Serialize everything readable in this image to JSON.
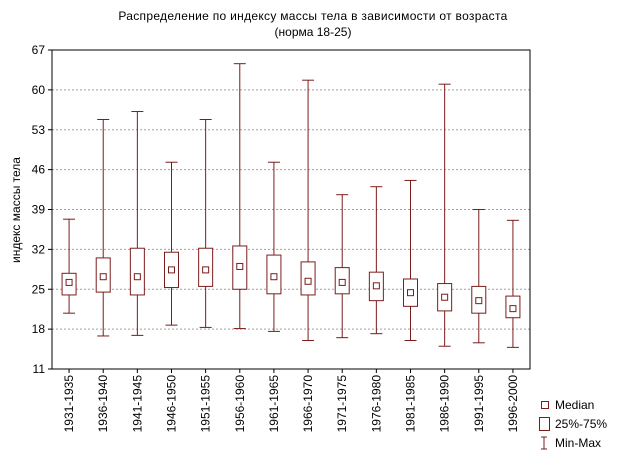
{
  "chart_data": {
    "type": "boxplot",
    "title": "Распределение по индексу массы тела в зависимости от возраста",
    "subtitle": "(норма 18-25)",
    "xlabel": "",
    "ylabel": "индекс массы тела",
    "ylim": [
      11,
      67
    ],
    "yticks": [
      "11",
      "18",
      "25",
      "32",
      "39",
      "46",
      "53",
      "60",
      "67"
    ],
    "grid": true,
    "legend_position": "bottom-right",
    "categories": [
      "1931-1935",
      "1936-1940",
      "1941-1945",
      "1946-1950",
      "1951-1955",
      "1956-1960",
      "1961-1965",
      "1966-1970",
      "1971-1975",
      "1976-1980",
      "1981-1985",
      "1986-1990",
      "1991-1995",
      "1996-2000"
    ],
    "median": [
      26.2,
      27.2,
      27.2,
      28.4,
      28.4,
      29.0,
      27.2,
      26.4,
      26.2,
      25.6,
      24.4,
      23.6,
      23.0,
      21.6
    ],
    "q1": [
      24.0,
      24.5,
      24.0,
      25.3,
      25.5,
      25.0,
      24.2,
      24.0,
      24.2,
      23.0,
      22.0,
      21.2,
      20.8,
      20.0
    ],
    "q3": [
      27.8,
      30.5,
      32.2,
      31.5,
      32.2,
      32.6,
      31.0,
      29.8,
      28.8,
      28.0,
      26.8,
      26.0,
      25.5,
      23.8
    ],
    "min": [
      20.8,
      16.8,
      16.9,
      18.7,
      18.3,
      18.1,
      17.6,
      16.0,
      16.5,
      17.2,
      16.0,
      15.0,
      15.6,
      14.8
    ],
    "max": [
      37.3,
      54.8,
      56.2,
      47.3,
      54.8,
      64.6,
      47.3,
      61.7,
      41.6,
      43.0,
      44.1,
      61.0,
      39.0,
      37.1
    ],
    "legend": [
      "Median",
      "25%-75%",
      "Min-Max"
    ],
    "colors": {
      "series": "#7b1c1c",
      "grid": "#a0a0a0",
      "axis": "#000000"
    }
  }
}
